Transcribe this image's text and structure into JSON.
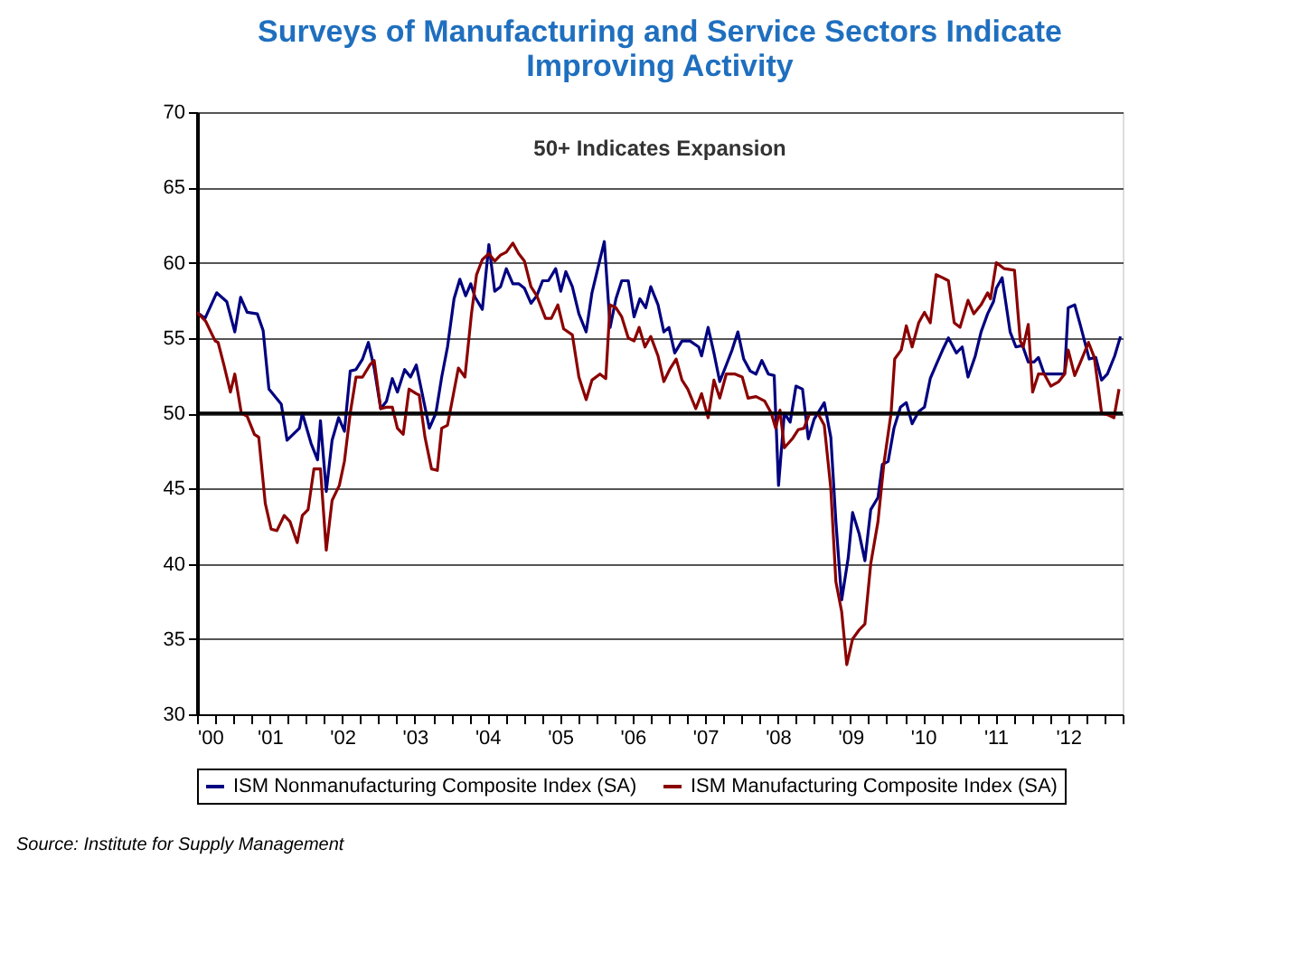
{
  "chart_data": {
    "type": "line",
    "title": "Surveys of Manufacturing and Service Sectors Indicate Improving Activity",
    "annotations": [
      "50+ Indicates Expansion",
      "Source: Institute for Supply Management"
    ],
    "xlim": [
      2000,
      2012.75
    ],
    "xticks": [
      {
        "value": 2000,
        "label": "'00"
      },
      {
        "value": 2000.25,
        "label": null
      },
      {
        "value": 2000.5,
        "label": null
      },
      {
        "value": 2000.75,
        "label": null
      },
      {
        "value": 2001,
        "label": "'01"
      },
      {
        "value": 2001.25,
        "label": null
      },
      {
        "value": 2001.5,
        "label": null
      },
      {
        "value": 2001.75,
        "label": null
      },
      {
        "value": 2002,
        "label": "'02"
      },
      {
        "value": 2002.25,
        "label": null
      },
      {
        "value": 2002.5,
        "label": null
      },
      {
        "value": 2002.75,
        "label": null
      },
      {
        "value": 2003,
        "label": "'03"
      },
      {
        "value": 2003.25,
        "label": null
      },
      {
        "value": 2003.5,
        "label": null
      },
      {
        "value": 2003.75,
        "label": null
      },
      {
        "value": 2004,
        "label": "'04"
      },
      {
        "value": 2004.25,
        "label": null
      },
      {
        "value": 2004.5,
        "label": null
      },
      {
        "value": 2004.75,
        "label": null
      },
      {
        "value": 2005,
        "label": "'05"
      },
      {
        "value": 2005.25,
        "label": null
      },
      {
        "value": 2005.5,
        "label": null
      },
      {
        "value": 2005.75,
        "label": null
      },
      {
        "value": 2006,
        "label": "'06"
      },
      {
        "value": 2006.25,
        "label": null
      },
      {
        "value": 2006.5,
        "label": null
      },
      {
        "value": 2006.75,
        "label": null
      },
      {
        "value": 2007,
        "label": "'07"
      },
      {
        "value": 2007.25,
        "label": null
      },
      {
        "value": 2007.5,
        "label": null
      },
      {
        "value": 2007.75,
        "label": null
      },
      {
        "value": 2008,
        "label": "'08"
      },
      {
        "value": 2008.25,
        "label": null
      },
      {
        "value": 2008.5,
        "label": null
      },
      {
        "value": 2008.75,
        "label": null
      },
      {
        "value": 2009,
        "label": "'09"
      },
      {
        "value": 2009.25,
        "label": null
      },
      {
        "value": 2009.5,
        "label": null
      },
      {
        "value": 2009.75,
        "label": null
      },
      {
        "value": 2010,
        "label": "'10"
      },
      {
        "value": 2010.25,
        "label": null
      },
      {
        "value": 2010.5,
        "label": null
      },
      {
        "value": 2010.75,
        "label": null
      },
      {
        "value": 2011,
        "label": "'11"
      },
      {
        "value": 2011.25,
        "label": null
      },
      {
        "value": 2011.5,
        "label": null
      },
      {
        "value": 2011.75,
        "label": null
      },
      {
        "value": 2012,
        "label": "'12"
      },
      {
        "value": 2012.25,
        "label": null
      },
      {
        "value": 2012.5,
        "label": null
      },
      {
        "value": 2012.75,
        "label": null
      }
    ],
    "ylim": [
      30,
      70
    ],
    "yticks": [
      30,
      35,
      40,
      45,
      50,
      55,
      60,
      65,
      70
    ],
    "grid": "y",
    "legend": "bottom",
    "ref_lines": [
      {
        "axis": "y",
        "value": 50,
        "color": "#000000"
      }
    ],
    "series": [
      {
        "name": "ISM Nonmanufacturing Composite Index (SA)",
        "color": "#000080",
        "x": [
          2000.0,
          2000.11,
          2000.27,
          2000.41,
          2000.52,
          2000.6,
          2000.69,
          2000.83,
          2000.91,
          2000.99,
          2001.16,
          2001.24,
          2001.41,
          2001.45,
          2001.57,
          2001.66,
          2001.7,
          2001.78,
          2001.86,
          2001.95,
          2002.03,
          2002.11,
          2002.19,
          2002.28,
          2002.36,
          2002.44,
          2002.53,
          2002.61,
          2002.69,
          2002.76,
          2002.86,
          2002.94,
          2003.02,
          2003.2,
          2003.29,
          2003.37,
          2003.45,
          2003.54,
          2003.62,
          2003.7,
          2003.77,
          2003.83,
          2003.93,
          2004.02,
          2004.1,
          2004.18,
          2004.26,
          2004.35,
          2004.43,
          2004.51,
          2004.6,
          2004.68,
          2004.76,
          2004.84,
          2004.94,
          2005.01,
          2005.08,
          2005.17,
          2005.26,
          2005.36,
          2005.44,
          2005.52,
          2005.61,
          2005.69,
          2005.77,
          2005.85,
          2005.94,
          2006.02,
          2006.1,
          2006.18,
          2006.25,
          2006.35,
          2006.43,
          2006.5,
          2006.58,
          2006.68,
          2006.79,
          2006.91,
          2006.95,
          2007.04,
          2007.12,
          2007.2,
          2007.29,
          2007.37,
          2007.45,
          2007.53,
          2007.62,
          2007.7,
          2007.78,
          2007.87,
          2007.95,
          2008.01,
          2008.09,
          2008.17,
          2008.25,
          2008.34,
          2008.42,
          2008.5,
          2008.64,
          2008.73,
          2008.8,
          2008.88,
          2008.97,
          2009.03,
          2009.12,
          2009.2,
          2009.28,
          2009.38,
          2009.44,
          2009.52,
          2009.6,
          2009.69,
          2009.77,
          2009.85,
          2009.94,
          2010.02,
          2010.1,
          2010.18,
          2010.27,
          2010.35,
          2010.46,
          2010.54,
          2010.62,
          2010.72,
          2010.8,
          2010.89,
          2010.97,
          2011.01,
          2011.09,
          2011.2,
          2011.28,
          2011.37,
          2011.45,
          2011.53,
          2011.59,
          2011.67,
          2011.84,
          2011.95,
          2012.0,
          2012.09,
          2012.17,
          2012.29,
          2012.38,
          2012.46,
          2012.54,
          2012.64,
          2012.72
        ],
        "values": [
          56.7,
          56.3,
          58.0,
          57.4,
          55.4,
          57.7,
          56.7,
          56.6,
          55.5,
          51.6,
          50.6,
          48.2,
          49.0,
          50.0,
          48.0,
          46.9,
          49.5,
          44.8,
          48.2,
          49.7,
          48.8,
          52.8,
          52.9,
          53.6,
          54.7,
          53.0,
          50.3,
          50.8,
          52.3,
          51.4,
          52.9,
          52.4,
          53.2,
          49.0,
          50.0,
          52.4,
          54.4,
          57.6,
          58.9,
          57.8,
          58.6,
          57.7,
          56.9,
          61.2,
          58.1,
          58.4,
          59.6,
          58.6,
          58.6,
          58.3,
          57.3,
          57.8,
          58.8,
          58.8,
          59.6,
          58.1,
          59.4,
          58.4,
          56.6,
          55.4,
          58.0,
          59.6,
          61.4,
          55.7,
          57.6,
          58.8,
          58.8,
          56.4,
          57.6,
          57.0,
          58.4,
          57.2,
          55.4,
          55.7,
          54.0,
          54.8,
          54.8,
          54.4,
          53.8,
          55.7,
          54.0,
          52.1,
          53.2,
          54.2,
          55.4,
          53.6,
          52.8,
          52.6,
          53.5,
          52.6,
          52.5,
          45.2,
          50.0,
          49.4,
          51.8,
          51.6,
          48.3,
          49.6,
          50.7,
          48.4,
          42.8,
          37.6,
          40.4,
          43.4,
          42.0,
          40.2,
          43.6,
          44.4,
          46.6,
          46.8,
          49.0,
          50.4,
          50.7,
          49.3,
          50.1,
          50.4,
          52.3,
          53.2,
          54.2,
          55.0,
          54.0,
          54.4,
          52.4,
          53.8,
          55.4,
          56.6,
          57.4,
          58.3,
          59.0,
          55.4,
          54.4,
          54.5,
          53.4,
          53.4,
          53.7,
          52.6,
          52.6,
          52.6,
          57.0,
          57.2,
          55.8,
          53.6,
          53.7,
          52.2,
          52.6,
          53.8,
          55.1
        ]
      },
      {
        "name": "ISM Manufacturing Composite Index (SA)",
        "color": "#8b0000",
        "x": [
          2000.0,
          2000.12,
          2000.25,
          2000.29,
          2000.37,
          2000.46,
          2000.52,
          2000.61,
          2000.69,
          2000.79,
          2000.85,
          2000.94,
          2001.02,
          2001.1,
          2001.2,
          2001.28,
          2001.38,
          2001.45,
          2001.53,
          2001.61,
          2001.7,
          2001.78,
          2001.86,
          2001.96,
          2002.03,
          2002.11,
          2002.19,
          2002.28,
          2002.38,
          2002.44,
          2002.53,
          2002.61,
          2002.69,
          2002.76,
          2002.84,
          2002.92,
          2003.02,
          2003.06,
          2003.14,
          2003.23,
          2003.31,
          2003.37,
          2003.45,
          2003.6,
          2003.69,
          2003.78,
          2003.85,
          2003.93,
          2004.02,
          2004.1,
          2004.18,
          2004.26,
          2004.35,
          2004.43,
          2004.51,
          2004.6,
          2004.68,
          2004.8,
          2004.88,
          2004.97,
          2005.05,
          2005.17,
          2005.26,
          2005.36,
          2005.44,
          2005.55,
          2005.63,
          2005.69,
          2005.77,
          2005.85,
          2005.94,
          2006.02,
          2006.09,
          2006.17,
          2006.25,
          2006.35,
          2006.43,
          2006.51,
          2006.6,
          2006.68,
          2006.76,
          2006.87,
          2006.95,
          2007.04,
          2007.12,
          2007.2,
          2007.29,
          2007.41,
          2007.51,
          2007.59,
          2007.7,
          2007.82,
          2007.91,
          2007.97,
          2008.03,
          2008.09,
          2008.2,
          2008.28,
          2008.36,
          2008.44,
          2008.55,
          2008.64,
          2008.73,
          2008.8,
          2008.88,
          2008.95,
          2009.03,
          2009.12,
          2009.2,
          2009.28,
          2009.38,
          2009.46,
          2009.56,
          2009.61,
          2009.7,
          2009.77,
          2009.85,
          2009.94,
          2010.02,
          2010.1,
          2010.18,
          2010.27,
          2010.35,
          2010.43,
          2010.51,
          2010.62,
          2010.7,
          2010.8,
          2010.89,
          2010.93,
          2011.01,
          2011.12,
          2011.26,
          2011.34,
          2011.38,
          2011.45,
          2011.51,
          2011.59,
          2011.67,
          2011.76,
          2011.87,
          2011.95,
          2012.0,
          2012.09,
          2012.17,
          2012.28,
          2012.36,
          2012.46,
          2012.54,
          2012.63,
          2012.7
        ],
        "values": [
          56.7,
          56.1,
          54.8,
          54.7,
          53.2,
          51.4,
          52.6,
          50.0,
          49.8,
          48.6,
          48.4,
          44.0,
          42.3,
          42.2,
          43.2,
          42.8,
          41.4,
          43.2,
          43.6,
          46.3,
          46.3,
          40.9,
          44.2,
          45.2,
          46.8,
          50.0,
          52.4,
          52.4,
          53.2,
          53.5,
          50.3,
          50.4,
          50.4,
          49.0,
          48.6,
          51.6,
          51.3,
          51.2,
          48.4,
          46.3,
          46.2,
          49.0,
          49.2,
          53.0,
          52.4,
          56.6,
          59.2,
          60.2,
          60.6,
          60.1,
          60.5,
          60.7,
          61.3,
          60.6,
          60.1,
          58.4,
          57.8,
          56.3,
          56.3,
          57.2,
          55.6,
          55.2,
          52.4,
          50.9,
          52.2,
          52.6,
          52.3,
          57.2,
          57.0,
          56.4,
          55.0,
          54.8,
          55.7,
          54.4,
          55.1,
          53.8,
          52.1,
          52.9,
          53.6,
          52.2,
          51.6,
          50.3,
          51.3,
          49.7,
          52.2,
          51.0,
          52.6,
          52.6,
          52.4,
          51.0,
          51.1,
          50.8,
          50.0,
          49.0,
          50.2,
          47.7,
          48.3,
          48.9,
          49.0,
          50.0,
          50.0,
          49.2,
          45.0,
          38.8,
          36.8,
          33.3,
          35.0,
          35.6,
          36.0,
          40.0,
          42.8,
          46.6,
          50.0,
          53.6,
          54.2,
          55.8,
          54.4,
          56.0,
          56.7,
          56.0,
          59.2,
          59.0,
          58.8,
          56.0,
          55.7,
          57.5,
          56.6,
          57.2,
          58.0,
          57.6,
          60.0,
          59.6,
          59.5,
          54.8,
          54.4,
          55.9,
          51.4,
          52.6,
          52.6,
          51.8,
          52.1,
          52.6,
          54.2,
          52.5,
          53.4,
          54.7,
          53.7,
          50.0,
          49.9,
          49.7,
          51.6
        ]
      }
    ]
  }
}
